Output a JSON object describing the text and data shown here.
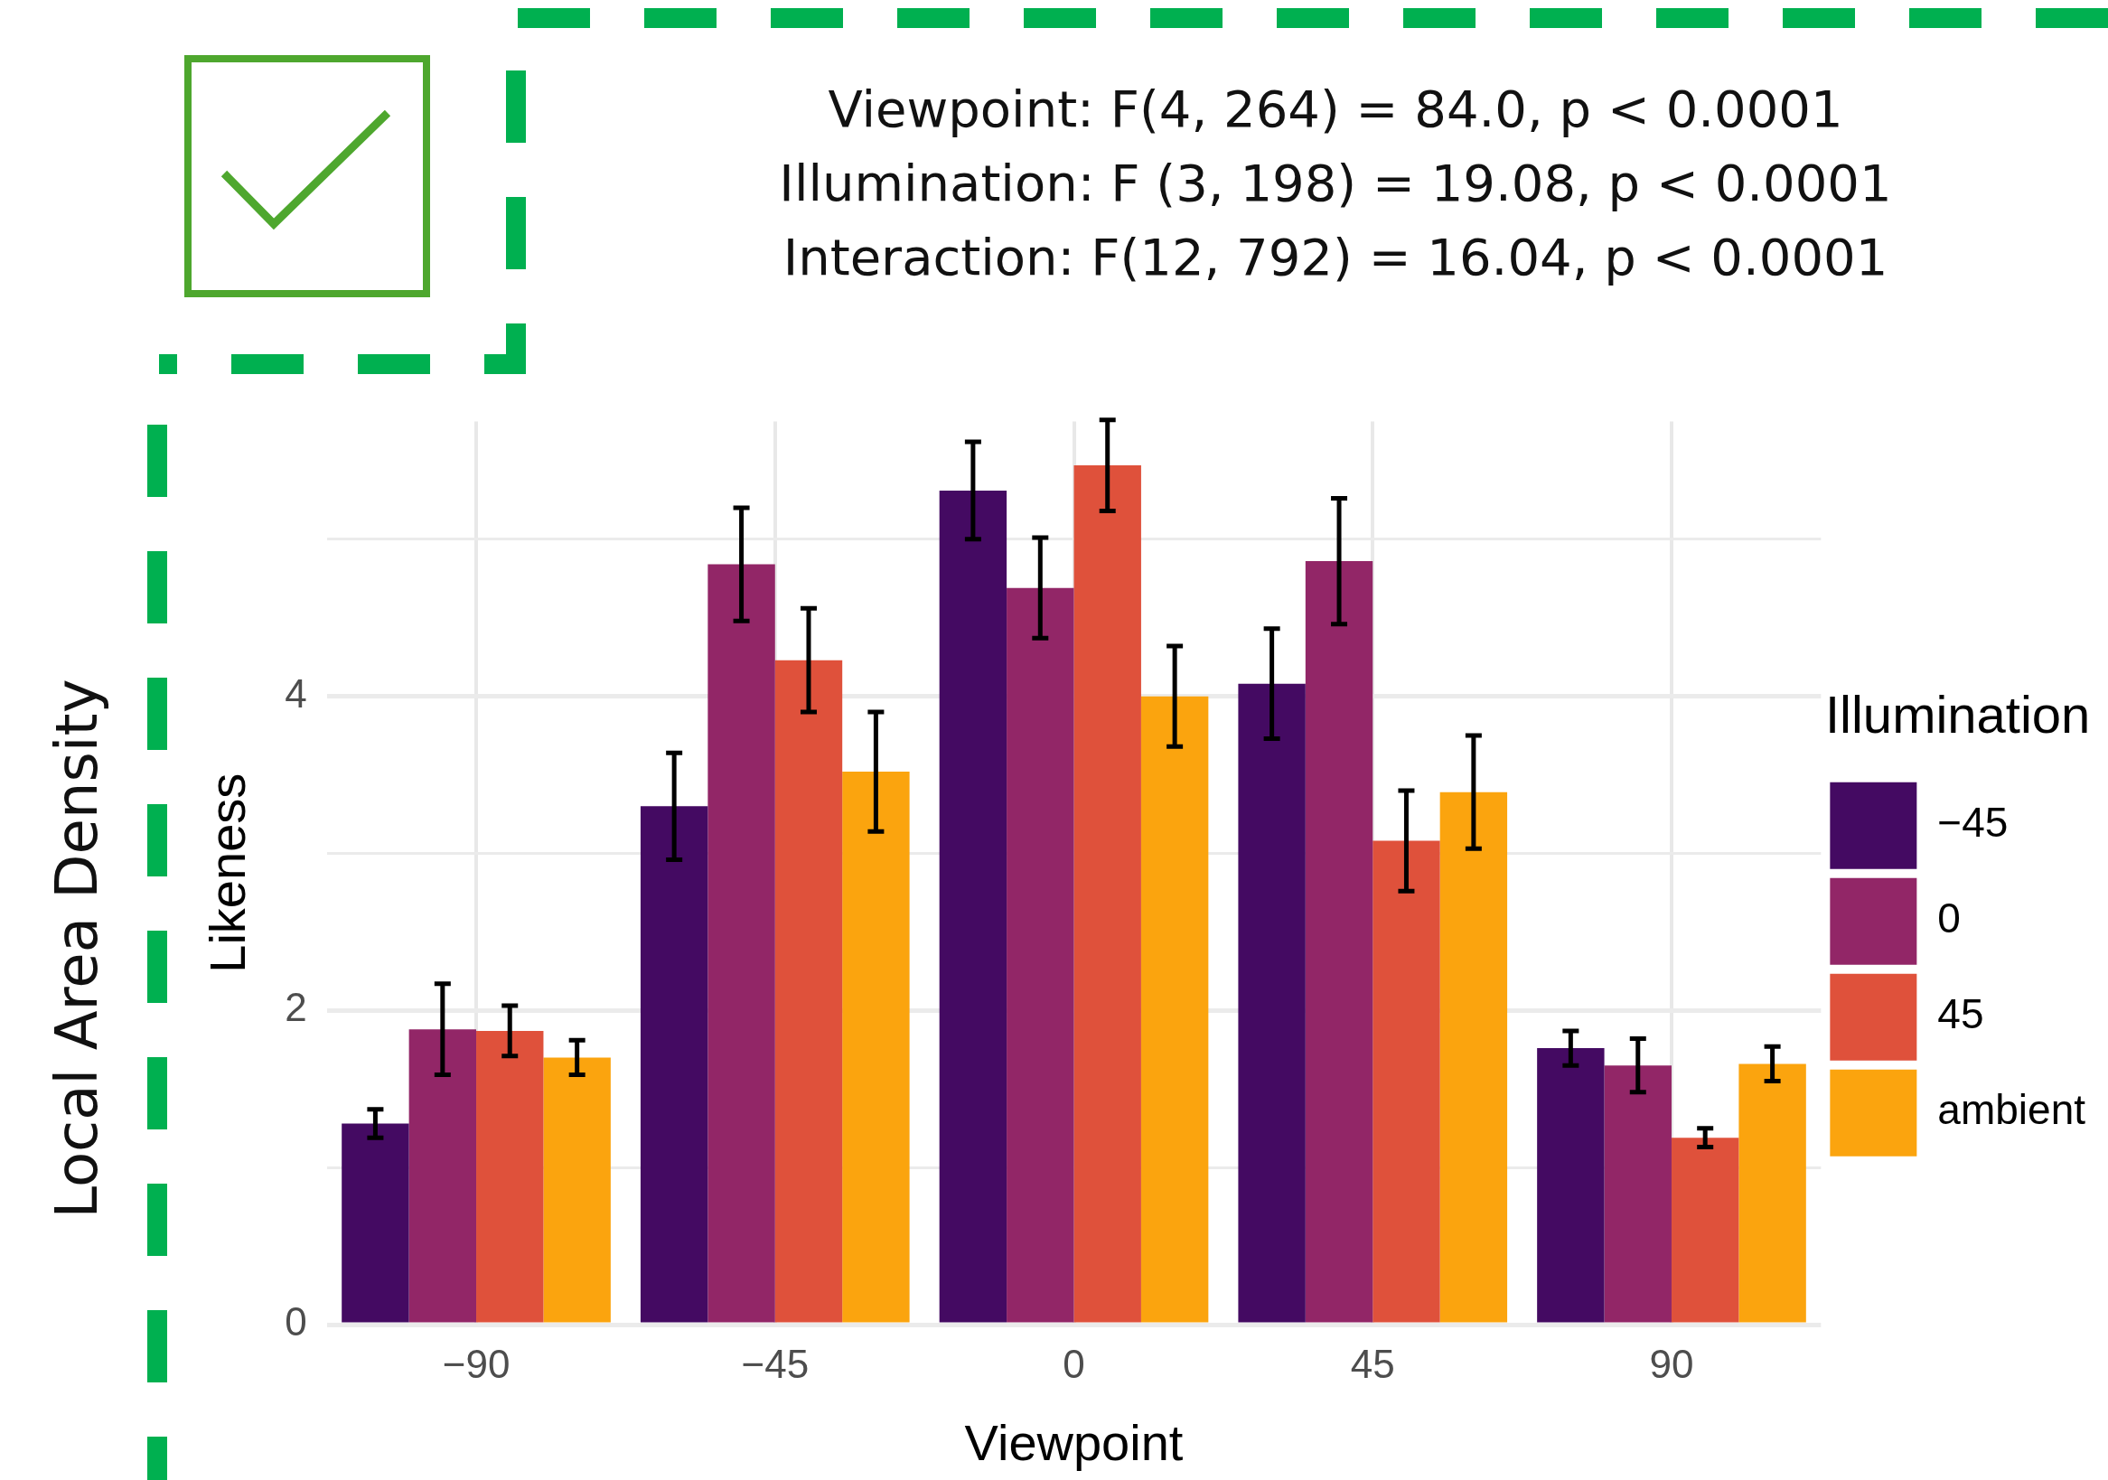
{
  "chart_data": {
    "type": "bar",
    "xlabel": "Viewpoint",
    "ylabel": "Likeness",
    "legend_title": "Illumination",
    "legend": "right",
    "categories": [
      "−90",
      "−45",
      "0",
      "45",
      "90"
    ],
    "series": [
      {
        "name": "−45",
        "color": "#440a62",
        "values": [
          1.28,
          3.3,
          5.31,
          4.08,
          1.76
        ],
        "errors": [
          0.09,
          0.34,
          0.31,
          0.35,
          0.11
        ]
      },
      {
        "name": "0",
        "color": "#922667",
        "values": [
          1.88,
          4.84,
          4.69,
          4.86,
          1.65
        ],
        "errors": [
          0.29,
          0.36,
          0.32,
          0.4,
          0.17
        ]
      },
      {
        "name": "45",
        "color": "#df513b",
        "values": [
          1.87,
          4.23,
          5.47,
          3.08,
          1.19
        ],
        "errors": [
          0.16,
          0.33,
          0.29,
          0.32,
          0.06
        ]
      },
      {
        "name": "ambient",
        "color": "#fba40e",
        "values": [
          1.7,
          3.52,
          4.0,
          3.39,
          1.66
        ],
        "errors": [
          0.11,
          0.38,
          0.32,
          0.36,
          0.11
        ]
      }
    ],
    "ylim": [
      0,
      5.75
    ],
    "yticks": [
      0,
      {
        "value": 1,
        "label": null
      },
      2,
      {
        "value": 3,
        "label": null
      },
      4,
      {
        "value": 5,
        "label": null
      }
    ],
    "grid": true,
    "annotations": [
      "Viewpoint: F(4, 264) = 84.0, p < 0.0001",
      "Illumination: F (3, 198) = 19.08, p < 0.0001",
      "Interaction: F(12, 792) = 16.04, p < 0.0001",
      "Local Area Density"
    ]
  }
}
